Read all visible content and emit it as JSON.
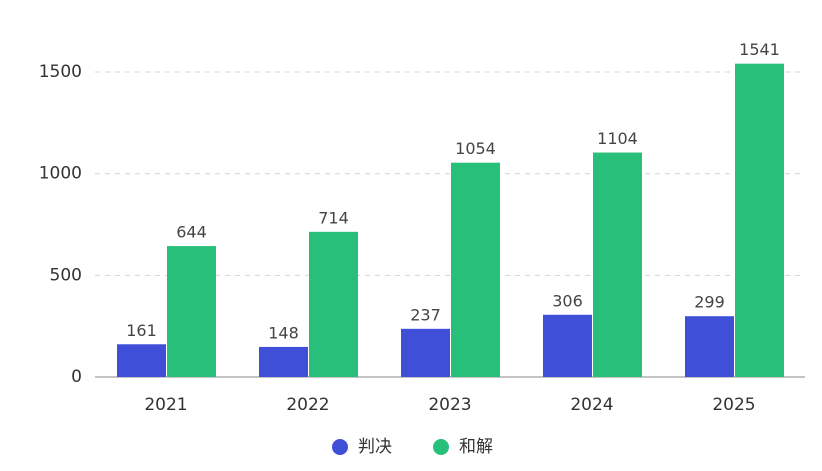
{
  "chart_data": {
    "type": "bar",
    "categories": [
      "2021",
      "2022",
      "2023",
      "2024",
      "2025"
    ],
    "series": [
      {
        "name": "判决",
        "color": "#3f4fd8",
        "values": [
          161,
          148,
          237,
          306,
          299
        ]
      },
      {
        "name": "和解",
        "color": "#27bf7a",
        "values": [
          644,
          714,
          1054,
          1104,
          1541
        ]
      }
    ],
    "ylim": [
      0,
      1600
    ],
    "yticks": [
      0,
      500,
      1000,
      1500
    ],
    "grid": true,
    "legend": "bottom"
  }
}
